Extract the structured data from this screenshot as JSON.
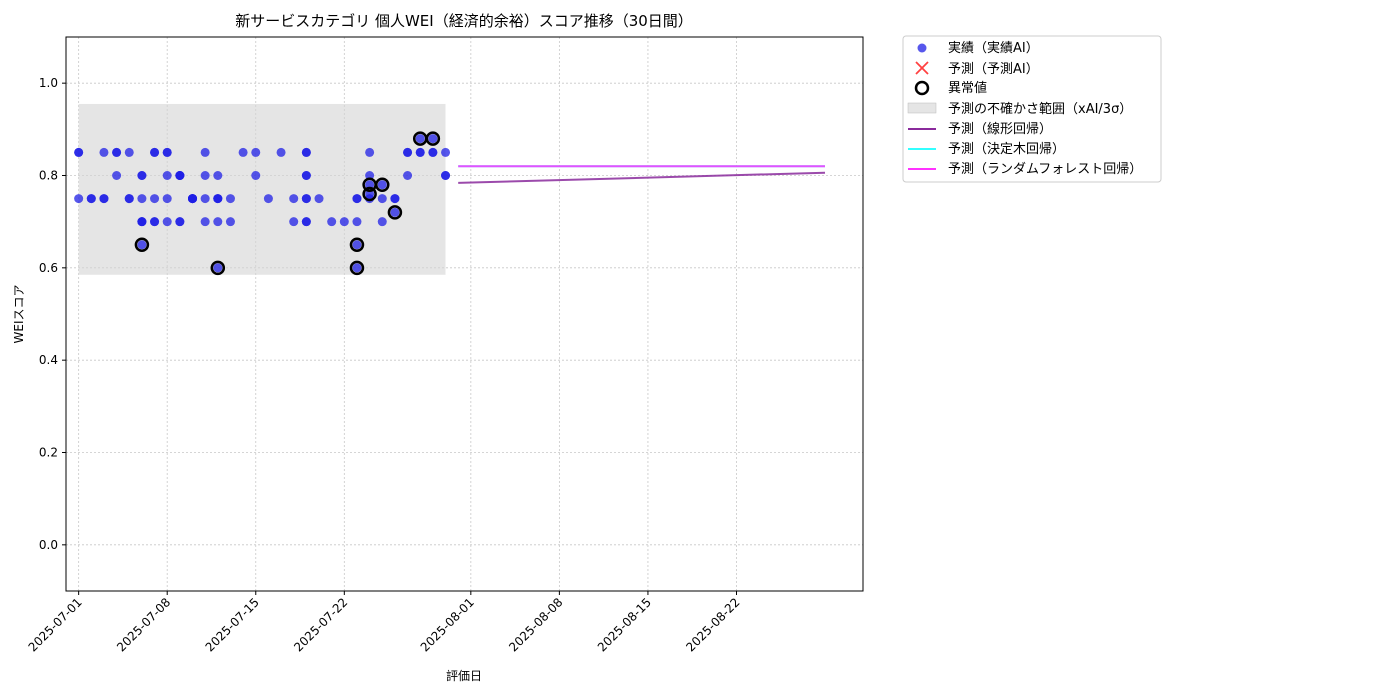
{
  "chart_data": {
    "type": "scatter",
    "title": "新サービスカテゴリ 個人WEI（経済的余裕）スコア推移（30日間）",
    "xlabel": "評価日",
    "ylabel": "WEIスコア",
    "xlim": [
      "2025-06-30",
      "2025-09-01"
    ],
    "ylim": [
      -0.1,
      1.1
    ],
    "yticks": [
      0.0,
      0.2,
      0.4,
      0.6,
      0.8,
      1.0
    ],
    "ytick_labels": [
      "0.0",
      "0.2",
      "0.4",
      "0.6",
      "0.8",
      "1.0"
    ],
    "xticks": [
      "2025-07-01",
      "2025-07-08",
      "2025-07-15",
      "2025-07-22",
      "2025-08-01",
      "2025-08-08",
      "2025-08-15",
      "2025-08-22"
    ],
    "grid": true,
    "legend_position": "outside-upper-right",
    "colors": {
      "actual": "#1f1fe6",
      "predicted": "#ff4040",
      "anomaly": "#000000",
      "band": "#d3d3d3",
      "linear": "#8a2a9c",
      "tree": "#33ffff",
      "forest": "#ff33ff"
    },
    "legend": {
      "actual": "実績（実績AI）",
      "predicted": "予測（予測AI）",
      "anomaly": "異常値",
      "band": "予測の不確かさ範囲（xAI/3σ）",
      "linear": "予測（線形回帰）",
      "tree": "予測（決定木回帰）",
      "forest": "予測（ランダムフォレスト回帰）"
    },
    "series": [
      {
        "name": "実績（実績AI）",
        "kind": "scatter",
        "points": [
          [
            "2025-07-01",
            0.85
          ],
          [
            "2025-07-01",
            0.85
          ],
          [
            "2025-07-01",
            0.75
          ],
          [
            "2025-07-02",
            0.75
          ],
          [
            "2025-07-02",
            0.75
          ],
          [
            "2025-07-03",
            0.75
          ],
          [
            "2025-07-03",
            0.75
          ],
          [
            "2025-07-03",
            0.85
          ],
          [
            "2025-07-04",
            0.85
          ],
          [
            "2025-07-04",
            0.85
          ],
          [
            "2025-07-04",
            0.8
          ],
          [
            "2025-07-05",
            0.85
          ],
          [
            "2025-07-05",
            0.75
          ],
          [
            "2025-07-05",
            0.75
          ],
          [
            "2025-07-06",
            0.7
          ],
          [
            "2025-07-06",
            0.7
          ],
          [
            "2025-07-06",
            0.65
          ],
          [
            "2025-07-06",
            0.7
          ],
          [
            "2025-07-06",
            0.8
          ],
          [
            "2025-07-06",
            0.75
          ],
          [
            "2025-07-06",
            0.8
          ],
          [
            "2025-07-07",
            0.75
          ],
          [
            "2025-07-07",
            0.85
          ],
          [
            "2025-07-07",
            0.85
          ],
          [
            "2025-07-07",
            0.7
          ],
          [
            "2025-07-07",
            0.7
          ],
          [
            "2025-07-08",
            0.8
          ],
          [
            "2025-07-08",
            0.85
          ],
          [
            "2025-07-08",
            0.85
          ],
          [
            "2025-07-08",
            0.75
          ],
          [
            "2025-07-08",
            0.7
          ],
          [
            "2025-07-09",
            0.8
          ],
          [
            "2025-07-09",
            0.8
          ],
          [
            "2025-07-09",
            0.8
          ],
          [
            "2025-07-09",
            0.8
          ],
          [
            "2025-07-09",
            0.7
          ],
          [
            "2025-07-09",
            0.7
          ],
          [
            "2025-07-10",
            0.75
          ],
          [
            "2025-07-10",
            0.75
          ],
          [
            "2025-07-10",
            0.75
          ],
          [
            "2025-07-10",
            0.75
          ],
          [
            "2025-07-10",
            0.75
          ],
          [
            "2025-07-11",
            0.7
          ],
          [
            "2025-07-11",
            0.85
          ],
          [
            "2025-07-11",
            0.8
          ],
          [
            "2025-07-11",
            0.75
          ],
          [
            "2025-07-12",
            0.75
          ],
          [
            "2025-07-12",
            0.75
          ],
          [
            "2025-07-12",
            0.8
          ],
          [
            "2025-07-12",
            0.7
          ],
          [
            "2025-07-12",
            0.75
          ],
          [
            "2025-07-12",
            0.6
          ],
          [
            "2025-07-13",
            0.7
          ],
          [
            "2025-07-13",
            0.75
          ],
          [
            "2025-07-14",
            0.85
          ],
          [
            "2025-07-15",
            0.85
          ],
          [
            "2025-07-15",
            0.8
          ],
          [
            "2025-07-16",
            0.75
          ],
          [
            "2025-07-17",
            0.85
          ],
          [
            "2025-07-18",
            0.75
          ],
          [
            "2025-07-18",
            0.7
          ],
          [
            "2025-07-19",
            0.7
          ],
          [
            "2025-07-19",
            0.75
          ],
          [
            "2025-07-19",
            0.85
          ],
          [
            "2025-07-19",
            0.85
          ],
          [
            "2025-07-19",
            0.8
          ],
          [
            "2025-07-19",
            0.75
          ],
          [
            "2025-07-19",
            0.7
          ],
          [
            "2025-07-19",
            0.8
          ],
          [
            "2025-07-20",
            0.75
          ],
          [
            "2025-07-21",
            0.7
          ],
          [
            "2025-07-22",
            0.7
          ],
          [
            "2025-07-23",
            0.75
          ],
          [
            "2025-07-23",
            0.7
          ],
          [
            "2025-07-23",
            0.65
          ],
          [
            "2025-07-23",
            0.6
          ],
          [
            "2025-07-23",
            0.75
          ],
          [
            "2025-07-24",
            0.8
          ],
          [
            "2025-07-24",
            0.85
          ],
          [
            "2025-07-24",
            0.76
          ],
          [
            "2025-07-24",
            0.78
          ],
          [
            "2025-07-24",
            0.75
          ],
          [
            "2025-07-25",
            0.7
          ],
          [
            "2025-07-25",
            0.75
          ],
          [
            "2025-07-25",
            0.78
          ],
          [
            "2025-07-26",
            0.75
          ],
          [
            "2025-07-26",
            0.72
          ],
          [
            "2025-07-26",
            0.75
          ],
          [
            "2025-07-27",
            0.85
          ],
          [
            "2025-07-27",
            0.85
          ],
          [
            "2025-07-27",
            0.8
          ],
          [
            "2025-07-28",
            0.85
          ],
          [
            "2025-07-28",
            0.88
          ],
          [
            "2025-07-28",
            0.85
          ],
          [
            "2025-07-29",
            0.85
          ],
          [
            "2025-07-29",
            0.85
          ],
          [
            "2025-07-29",
            0.88
          ],
          [
            "2025-07-30",
            0.85
          ],
          [
            "2025-07-30",
            0.8
          ],
          [
            "2025-07-30",
            0.8
          ]
        ]
      },
      {
        "name": "異常値",
        "kind": "anomaly",
        "points": [
          [
            "2025-07-06",
            0.65
          ],
          [
            "2025-07-12",
            0.6
          ],
          [
            "2025-07-23",
            0.65
          ],
          [
            "2025-07-23",
            0.6
          ],
          [
            "2025-07-24",
            0.76
          ],
          [
            "2025-07-24",
            0.78
          ],
          [
            "2025-07-25",
            0.78
          ],
          [
            "2025-07-26",
            0.72
          ],
          [
            "2025-07-28",
            0.88
          ],
          [
            "2025-07-29",
            0.88
          ]
        ]
      },
      {
        "name": "予測の不確かさ範囲（xAI/3σ）",
        "kind": "band",
        "x": [
          "2025-07-01",
          "2025-07-30"
        ],
        "y": [
          0.585,
          0.955
        ]
      },
      {
        "name": "予測（線形回帰）",
        "kind": "line",
        "points": [
          [
            "2025-07-31",
            0.784
          ],
          [
            "2025-08-29",
            0.806
          ]
        ]
      },
      {
        "name": "予測（決定木回帰）",
        "kind": "line",
        "points": [
          [
            "2025-07-31",
            0.82
          ],
          [
            "2025-08-29",
            0.82
          ]
        ]
      },
      {
        "name": "予測（ランダムフォレスト回帰）",
        "kind": "line",
        "points": [
          [
            "2025-07-31",
            0.82
          ],
          [
            "2025-08-29",
            0.82
          ]
        ]
      }
    ]
  }
}
